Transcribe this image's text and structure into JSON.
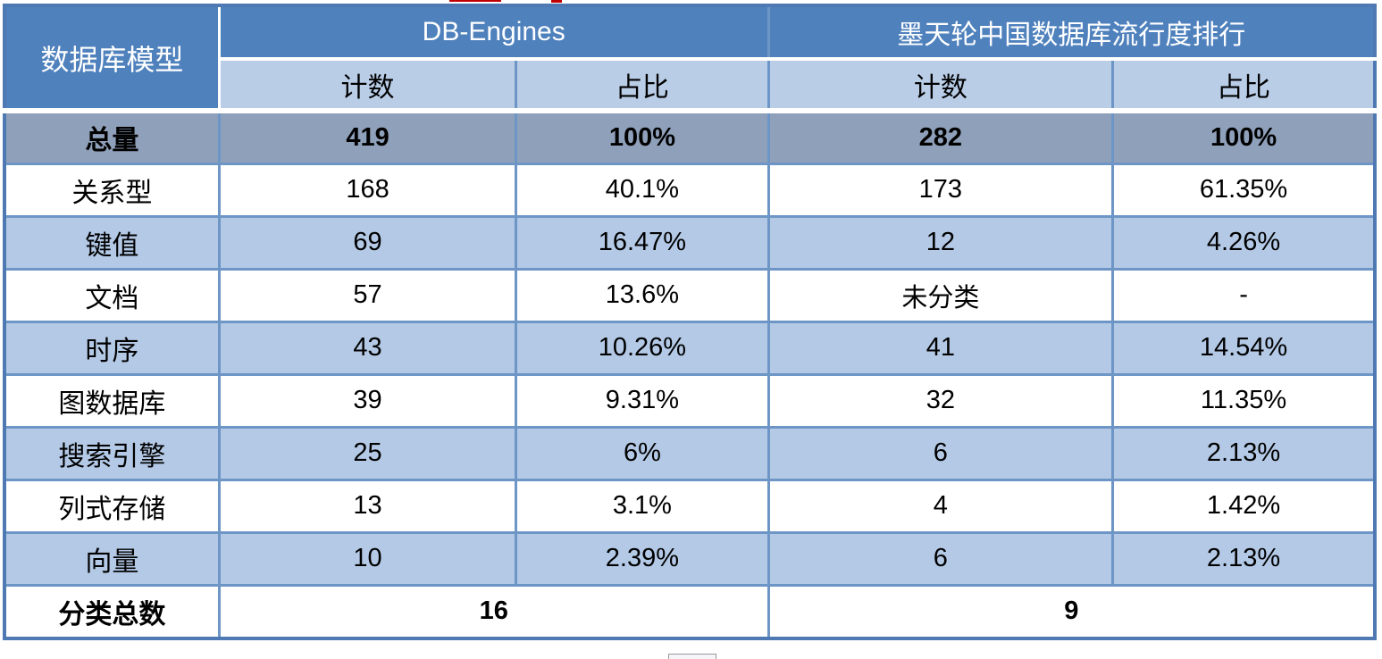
{
  "table": {
    "corner_header": "数据库模型",
    "group_headers": [
      {
        "label": "DB-Engines"
      },
      {
        "label": "墨天轮中国数据库流行度排行"
      }
    ],
    "sub_headers": [
      "计数",
      "占比",
      "计数",
      "占比"
    ],
    "rows": [
      {
        "label": "总量",
        "values": [
          "419",
          "100%",
          "282",
          "100%"
        ]
      },
      {
        "label": "关系型",
        "values": [
          "168",
          "40.1%",
          "173",
          "61.35%"
        ]
      },
      {
        "label": "键值",
        "values": [
          "69",
          "16.47%",
          "12",
          "4.26%"
        ]
      },
      {
        "label": "文档",
        "values": [
          "57",
          "13.6%",
          "未分类",
          "-"
        ]
      },
      {
        "label": "时序",
        "values": [
          "43",
          "10.26%",
          "41",
          "14.54%"
        ]
      },
      {
        "label": "图数据库",
        "values": [
          "39",
          "9.31%",
          "32",
          "11.35%"
        ]
      },
      {
        "label": "搜索引擎",
        "values": [
          "25",
          "6%",
          "6",
          "2.13%"
        ]
      },
      {
        "label": "列式存储",
        "values": [
          "13",
          "3.1%",
          "4",
          "1.42%"
        ]
      },
      {
        "label": "向量",
        "values": [
          "10",
          "2.39%",
          "6",
          "2.13%"
        ]
      }
    ],
    "footer": {
      "label": "分类总数",
      "values": [
        "16",
        "9"
      ]
    }
  },
  "colors": {
    "header_blue": "#4f81bd",
    "subheader_blue": "#b9cde7",
    "row_alt_blue": "#b3c9e6",
    "total_row_gray": "#8fa0ba",
    "grid_border": "#6d96c6",
    "outer_border": "#4e79b2",
    "text": "#000000",
    "header_text": "#ffffff"
  },
  "chart_data": {
    "type": "table",
    "columns": [
      "数据库模型",
      "DB-Engines 计数",
      "DB-Engines 占比",
      "墨天轮中国数据库流行度排行 计数",
      "墨天轮中国数据库流行度排行 占比"
    ],
    "rows": [
      [
        "总量",
        "419",
        "100%",
        "282",
        "100%"
      ],
      [
        "关系型",
        "168",
        "40.1%",
        "173",
        "61.35%"
      ],
      [
        "键值",
        "69",
        "16.47%",
        "12",
        "4.26%"
      ],
      [
        "文档",
        "57",
        "13.6%",
        "未分类",
        "-"
      ],
      [
        "时序",
        "43",
        "10.26%",
        "41",
        "14.54%"
      ],
      [
        "图数据库",
        "39",
        "9.31%",
        "32",
        "11.35%"
      ],
      [
        "搜索引擎",
        "25",
        "6%",
        "6",
        "2.13%"
      ],
      [
        "列式存储",
        "13",
        "3.1%",
        "4",
        "1.42%"
      ],
      [
        "向量",
        "10",
        "2.39%",
        "6",
        "2.13%"
      ],
      [
        "分类总数",
        "16",
        "",
        "9",
        ""
      ]
    ]
  }
}
